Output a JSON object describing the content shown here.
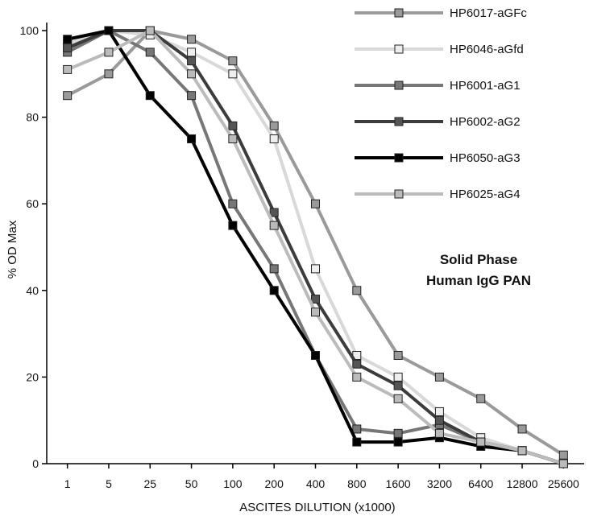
{
  "chart_data": {
    "type": "line",
    "xlabel": "ASCITES DILUTION (x1000)",
    "ylabel": "% OD Max",
    "categories": [
      "1",
      "5",
      "25",
      "50",
      "100",
      "200",
      "400",
      "800",
      "1600",
      "3200",
      "6400",
      "12800",
      "25600"
    ],
    "ylim": [
      0,
      100
    ],
    "yticks": [
      0,
      20,
      40,
      60,
      80,
      100
    ],
    "grid": false,
    "legend_position": "top-right",
    "annotation": [
      "Solid Phase",
      "Human IgG PAN"
    ],
    "series": [
      {
        "name": "HP6017-aGFc",
        "line_color": "#9a9a9a",
        "marker_color": "#9a9a9a",
        "values": [
          85,
          90,
          100,
          98,
          93,
          78,
          60,
          40,
          25,
          20,
          15,
          8,
          2
        ]
      },
      {
        "name": "HP6046-aGfd",
        "line_color": "#d8d8d8",
        "marker_color": "#eeeeee",
        "values": [
          97,
          100,
          99,
          95,
          90,
          75,
          45,
          25,
          20,
          12,
          6,
          3,
          0
        ]
      },
      {
        "name": "HP6001-aG1",
        "line_color": "#777777",
        "marker_color": "#777777",
        "values": [
          95,
          100,
          95,
          85,
          60,
          45,
          25,
          8,
          7,
          9,
          5,
          3,
          0
        ]
      },
      {
        "name": "HP6002-aG2",
        "line_color": "#3c3c3c",
        "marker_color": "#555555",
        "values": [
          96,
          100,
          100,
          93,
          78,
          58,
          38,
          23,
          18,
          10,
          5,
          3,
          0
        ]
      },
      {
        "name": "HP6050-aG3",
        "line_color": "#000000",
        "marker_color": "#000000",
        "values": [
          98,
          100,
          85,
          75,
          55,
          40,
          25,
          5,
          5,
          6,
          4,
          3,
          0
        ]
      },
      {
        "name": "HP6025-aG4",
        "line_color": "#bbbbbb",
        "marker_color": "#bbbbbb",
        "values": [
          91,
          95,
          100,
          90,
          75,
          55,
          35,
          20,
          15,
          7,
          5,
          3,
          0
        ]
      }
    ]
  }
}
